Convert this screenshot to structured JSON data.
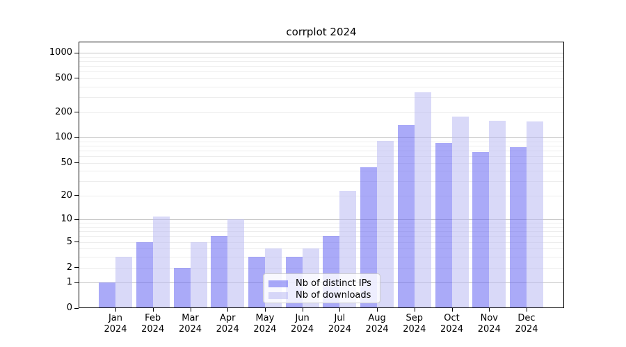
{
  "title": "corrplot 2024",
  "chart_data": {
    "type": "bar",
    "title": "corrplot 2024",
    "y_scale": "log1p",
    "xlabel": "",
    "ylabel": "",
    "categories": [
      "Jan 2024",
      "Feb 2024",
      "Mar 2024",
      "Apr 2024",
      "May 2024",
      "Jun 2024",
      "Jul 2024",
      "Aug 2024",
      "Sep 2024",
      "Oct 2024",
      "Nov 2024",
      "Dec 2024"
    ],
    "series": [
      {
        "name": "Nb of distinct IPs",
        "color": "#6464f3",
        "alpha": 0.55,
        "values": [
          1,
          5,
          2,
          6,
          3,
          3,
          6,
          44,
          141,
          87,
          68,
          77
        ]
      },
      {
        "name": "Nb of downloads",
        "color": "#babaf3",
        "alpha": 0.55,
        "values": [
          3,
          11,
          5,
          10,
          4,
          4,
          23,
          92,
          344,
          178,
          158,
          155
        ]
      }
    ],
    "y_ticks": [
      0,
      1,
      2,
      5,
      10,
      20,
      50,
      100,
      200,
      500,
      1000
    ],
    "ylim": [
      0,
      1330
    ],
    "grid": {
      "horizontal": true,
      "major_color": "#c4c4c4",
      "minor_color": "#ededed"
    },
    "legend": {
      "position": "lower-center"
    }
  }
}
